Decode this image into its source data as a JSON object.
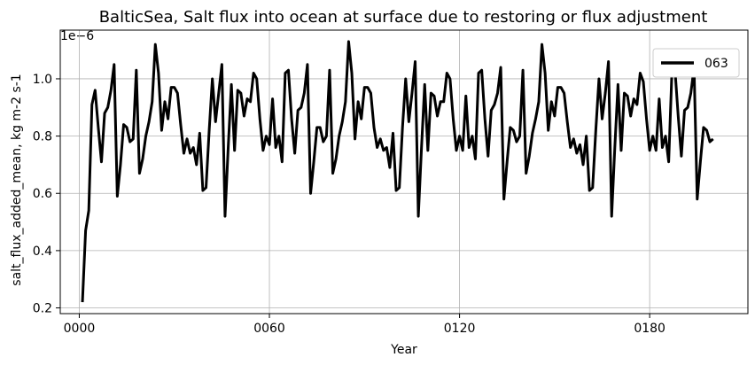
{
  "chart_data": {
    "type": "line",
    "title": "BalticSea, Salt flux into ocean at surface due to restoring or flux adjustment",
    "xlabel": "Year",
    "ylabel": "salt_flux_added_mean, kg m-2 s-1",
    "y_offset_label": "1e−6",
    "xlim": [
      -6,
      211
    ],
    "ylim": [
      0.18,
      1.17
    ],
    "xticks": [
      0,
      60,
      120,
      180
    ],
    "xtick_labels": [
      "0000",
      "0060",
      "0120",
      "0180"
    ],
    "yticks": [
      0.2,
      0.4,
      0.6,
      0.8,
      1.0
    ],
    "ytick_labels": [
      "0.2",
      "0.4",
      "0.6",
      "0.8",
      "1.0"
    ],
    "grid": true,
    "legend_position": "top-right",
    "series": [
      {
        "name": "063",
        "color": "#000000",
        "x_start": 1,
        "x_step": 1,
        "values": [
          0.22,
          0.47,
          0.54,
          0.91,
          0.96,
          0.83,
          0.71,
          0.88,
          0.9,
          0.96,
          1.05,
          0.59,
          0.7,
          0.84,
          0.83,
          0.78,
          0.79,
          1.03,
          0.67,
          0.72,
          0.8,
          0.85,
          0.92,
          1.12,
          1.02,
          0.82,
          0.92,
          0.86,
          0.97,
          0.97,
          0.95,
          0.84,
          0.74,
          0.79,
          0.74,
          0.76,
          0.7,
          0.81,
          0.61,
          0.62,
          0.82,
          1.0,
          0.85,
          0.95,
          1.05,
          0.52,
          0.76,
          0.98,
          0.75,
          0.96,
          0.95,
          0.87,
          0.93,
          0.92,
          1.02,
          1.0,
          0.86,
          0.75,
          0.8,
          0.77,
          0.93,
          0.76,
          0.8,
          0.71,
          1.02,
          1.03,
          0.86,
          0.74,
          0.89,
          0.9,
          0.95,
          1.05,
          0.6,
          0.71,
          0.83,
          0.83,
          0.78,
          0.8,
          1.03,
          0.67,
          0.72,
          0.8,
          0.85,
          0.92,
          1.13,
          1.02,
          0.79,
          0.92,
          0.86,
          0.97,
          0.97,
          0.95,
          0.83,
          0.76,
          0.79,
          0.75,
          0.76,
          0.69,
          0.81,
          0.61,
          0.62,
          0.83,
          1.0,
          0.85,
          0.95,
          1.06,
          0.52,
          0.76,
          0.98,
          0.75,
          0.95,
          0.94,
          0.87,
          0.92,
          0.92,
          1.02,
          1.0,
          0.86,
          0.75,
          0.8,
          0.75,
          0.94,
          0.76,
          0.8,
          0.72,
          1.02,
          1.03,
          0.86,
          0.73,
          0.89,
          0.91,
          0.95,
          1.04,
          0.58,
          0.71,
          0.83,
          0.82,
          0.78,
          0.8,
          1.03,
          0.67,
          0.73,
          0.81,
          0.86,
          0.92,
          1.12,
          1.02,
          0.82,
          0.92,
          0.87,
          0.97,
          0.97,
          0.95,
          0.85,
          0.76,
          0.79,
          0.74,
          0.77,
          0.7,
          0.8,
          0.61,
          0.62,
          0.82,
          1.0,
          0.86,
          0.95,
          1.06,
          0.52,
          0.76,
          0.98,
          0.75,
          0.95,
          0.94,
          0.87,
          0.93,
          0.91,
          1.02,
          0.99,
          0.86,
          0.75,
          0.8,
          0.75,
          0.93,
          0.76,
          0.8,
          0.71,
          1.02,
          1.03,
          0.87,
          0.73,
          0.89,
          0.9,
          0.95,
          1.04,
          0.58,
          0.71,
          0.83,
          0.82,
          0.78,
          0.79
        ]
      }
    ]
  }
}
